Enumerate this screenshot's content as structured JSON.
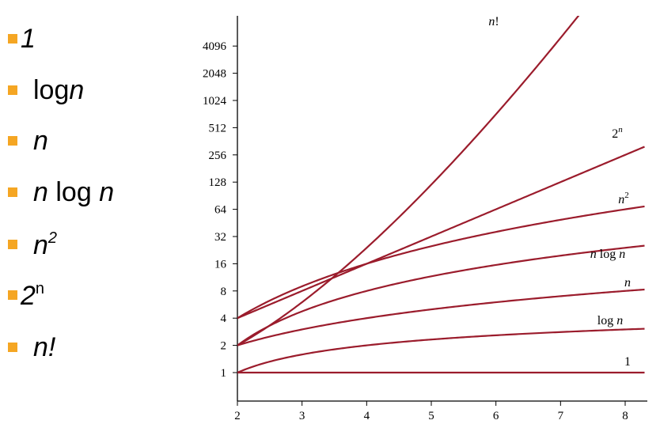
{
  "bullets": [
    {
      "name": "bullet-1",
      "parts": [
        {
          "t": "1",
          "i": true
        }
      ]
    },
    {
      "name": "bullet-logn",
      "parts": [
        {
          "t": "log"
        },
        {
          "t": "n",
          "i": true
        }
      ]
    },
    {
      "name": "bullet-n",
      "parts": [
        {
          "t": "n",
          "i": true
        }
      ]
    },
    {
      "name": "bullet-nlogn",
      "parts": [
        {
          "t": "n",
          "i": true
        },
        {
          "t": " log "
        },
        {
          "t": "n",
          "i": true
        }
      ]
    },
    {
      "name": "bullet-n2",
      "parts": [
        {
          "t": "n",
          "i": true
        },
        {
          "t": "2",
          "i": true,
          "sup": true
        }
      ]
    },
    {
      "name": "bullet-2n",
      "parts": [
        {
          "t": "2",
          "i": true
        },
        {
          "t": "n",
          "sup": true
        }
      ]
    },
    {
      "name": "bullet-nfact",
      "parts": [
        {
          "t": "n!",
          "i": true
        }
      ]
    }
  ],
  "colors": {
    "bullet": "#f5a623",
    "curve": "#9b1c2c",
    "axis": "#000000"
  },
  "chart_data": {
    "type": "line",
    "y_scale": "log2",
    "xlim": [
      2,
      8.3
    ],
    "ylim": [
      1,
      4096
    ],
    "x_ticks": [
      "2",
      "3",
      "4",
      "5",
      "6",
      "7",
      "8"
    ],
    "y_ticks": [
      "1",
      "2",
      "4",
      "8",
      "16",
      "32",
      "64",
      "128",
      "256",
      "512",
      "1024",
      "2048",
      "4096"
    ],
    "series": [
      {
        "name": "1",
        "fn": "one"
      },
      {
        "name": "log n",
        "fn": "log"
      },
      {
        "name": "n",
        "fn": "n"
      },
      {
        "name": "n log n",
        "fn": "nlogn"
      },
      {
        "name": "n2",
        "fn": "n2"
      },
      {
        "name": "2n",
        "fn": "2n"
      },
      {
        "name": "n!",
        "fn": "fact"
      }
    ]
  }
}
